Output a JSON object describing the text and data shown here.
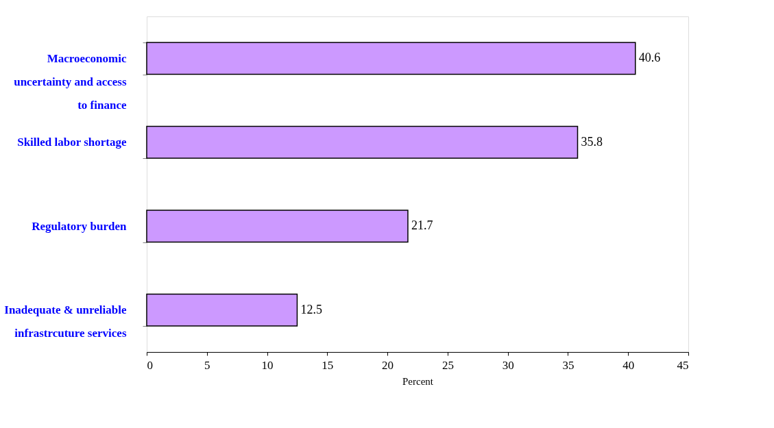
{
  "chart_data": {
    "type": "bar",
    "orientation": "horizontal",
    "categories": [
      "Macroeconomic uncertainty and access to finance",
      "Skilled labor shortage",
      "Regulatory burden",
      "Inadequate & unreliable infrastrcuture services"
    ],
    "values": [
      40.6,
      35.8,
      21.7,
      12.5
    ],
    "color": "#cc99ff",
    "xlabel": "Percent",
    "xlim": [
      0,
      45
    ],
    "xticks": [
      0,
      5,
      10,
      15,
      20,
      25,
      30,
      35,
      40,
      45
    ],
    "data_labels": true,
    "grid": false
  }
}
